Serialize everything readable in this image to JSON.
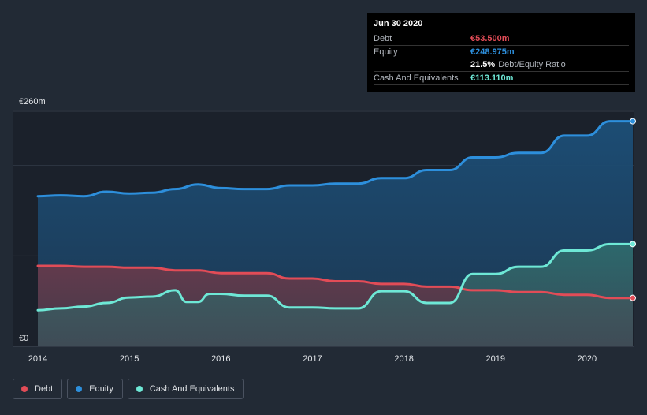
{
  "colors": {
    "debt": "#e24c57",
    "equity": "#2d8fdc",
    "cash": "#6ee8d6",
    "background": "#222a35"
  },
  "tooltip": {
    "date": "Jun 30 2020",
    "debt_label": "Debt",
    "debt_value": "€53.500m",
    "equity_label": "Equity",
    "equity_value": "€248.975m",
    "ratio_value": "21.5%",
    "ratio_label": "Debt/Equity Ratio",
    "cash_label": "Cash And Equivalents",
    "cash_value": "€113.110m"
  },
  "legend": {
    "items": [
      {
        "label": "Debt",
        "color": "#e24c57"
      },
      {
        "label": "Equity",
        "color": "#2d8fdc"
      },
      {
        "label": "Cash And Equivalents",
        "color": "#6ee8d6"
      }
    ]
  },
  "chart_data": {
    "type": "area",
    "title": "",
    "xlabel": "",
    "ylabel": "",
    "x_range": [
      2014.0,
      2020.5
    ],
    "ylim": [
      0,
      260
    ],
    "y_ticks": [
      {
        "value": 260,
        "label": "€260m"
      },
      {
        "value": 0,
        "label": "€0"
      }
    ],
    "gridlines": [
      0,
      100,
      200,
      260
    ],
    "x_ticks": [
      {
        "value": 2014,
        "label": "2014"
      },
      {
        "value": 2015,
        "label": "2015"
      },
      {
        "value": 2016,
        "label": "2016"
      },
      {
        "value": 2017,
        "label": "2017"
      },
      {
        "value": 2018,
        "label": "2018"
      },
      {
        "value": 2019,
        "label": "2019"
      },
      {
        "value": 2020,
        "label": "2020"
      }
    ],
    "series": [
      {
        "name": "Equity",
        "color": "#2d8fdc",
        "points": [
          [
            2014.0,
            166
          ],
          [
            2014.25,
            167
          ],
          [
            2014.5,
            166
          ],
          [
            2014.75,
            171
          ],
          [
            2015.0,
            169
          ],
          [
            2015.25,
            170
          ],
          [
            2015.5,
            174
          ],
          [
            2015.75,
            179
          ],
          [
            2016.0,
            175
          ],
          [
            2016.25,
            174
          ],
          [
            2016.5,
            174
          ],
          [
            2016.75,
            178
          ],
          [
            2017.0,
            178
          ],
          [
            2017.25,
            180
          ],
          [
            2017.5,
            180
          ],
          [
            2017.75,
            186
          ],
          [
            2018.0,
            186
          ],
          [
            2018.25,
            195
          ],
          [
            2018.5,
            195
          ],
          [
            2018.75,
            209
          ],
          [
            2019.0,
            209
          ],
          [
            2019.25,
            214
          ],
          [
            2019.5,
            214
          ],
          [
            2019.75,
            233
          ],
          [
            2020.0,
            233
          ],
          [
            2020.25,
            249
          ],
          [
            2020.5,
            249
          ]
        ]
      },
      {
        "name": "Debt",
        "color": "#e24c57",
        "points": [
          [
            2014.0,
            89
          ],
          [
            2014.25,
            89
          ],
          [
            2014.5,
            88
          ],
          [
            2014.75,
            88
          ],
          [
            2015.0,
            87
          ],
          [
            2015.25,
            87
          ],
          [
            2015.5,
            84
          ],
          [
            2015.75,
            84
          ],
          [
            2016.0,
            81
          ],
          [
            2016.25,
            81
          ],
          [
            2016.5,
            81
          ],
          [
            2016.75,
            75
          ],
          [
            2017.0,
            75
          ],
          [
            2017.25,
            72
          ],
          [
            2017.5,
            72
          ],
          [
            2017.75,
            69
          ],
          [
            2018.0,
            69
          ],
          [
            2018.25,
            66
          ],
          [
            2018.5,
            66
          ],
          [
            2018.75,
            62
          ],
          [
            2019.0,
            62
          ],
          [
            2019.25,
            60
          ],
          [
            2019.5,
            60
          ],
          [
            2019.75,
            57
          ],
          [
            2020.0,
            57
          ],
          [
            2020.25,
            53.5
          ],
          [
            2020.5,
            53.5
          ]
        ]
      },
      {
        "name": "Cash And Equivalents",
        "color": "#6ee8d6",
        "points": [
          [
            2014.0,
            40
          ],
          [
            2014.25,
            42
          ],
          [
            2014.5,
            44
          ],
          [
            2014.75,
            48
          ],
          [
            2015.0,
            54
          ],
          [
            2015.25,
            55
          ],
          [
            2015.5,
            62
          ],
          [
            2015.625,
            49
          ],
          [
            2015.75,
            49
          ],
          [
            2015.875,
            58
          ],
          [
            2016.0,
            58
          ],
          [
            2016.25,
            56
          ],
          [
            2016.5,
            56
          ],
          [
            2016.75,
            43
          ],
          [
            2017.0,
            43
          ],
          [
            2017.25,
            42
          ],
          [
            2017.5,
            42
          ],
          [
            2017.75,
            61
          ],
          [
            2018.0,
            61
          ],
          [
            2018.25,
            48
          ],
          [
            2018.5,
            48
          ],
          [
            2018.75,
            80
          ],
          [
            2019.0,
            80
          ],
          [
            2019.25,
            88
          ],
          [
            2019.5,
            88
          ],
          [
            2019.75,
            106
          ],
          [
            2020.0,
            106
          ],
          [
            2020.25,
            113.11
          ],
          [
            2020.5,
            113.11
          ]
        ]
      }
    ]
  }
}
